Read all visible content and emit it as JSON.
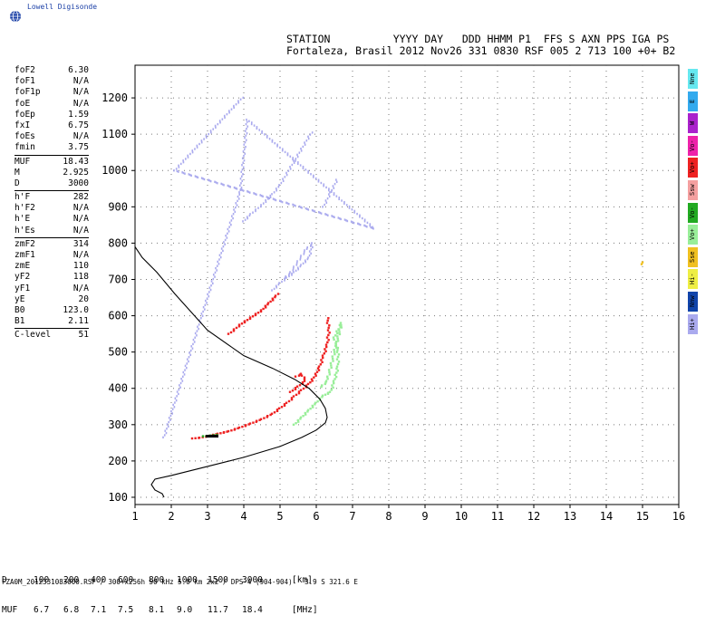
{
  "brand": {
    "name": "Lowell Digisonde"
  },
  "header": {
    "line1": "STATION          YYYY DAY   DDD HHMM P1  FFS S AXN PPS IGA PS",
    "line2": "Fortaleza, Brasil 2012 Nov26 331 0830 RSF 005 2 713 100 +0+ B2"
  },
  "params": [
    {
      "k": "foF2",
      "v": "6.30"
    },
    {
      "k": "foF1",
      "v": "N/A"
    },
    {
      "k": "foF1p",
      "v": "N/A"
    },
    {
      "k": "foE",
      "v": "N/A"
    },
    {
      "k": "foEp",
      "v": "1.59"
    },
    {
      "k": "fxI",
      "v": "6.75"
    },
    {
      "k": "foEs",
      "v": "N/A"
    },
    {
      "k": "fmin",
      "v": "3.75"
    },
    {
      "sep": true
    },
    {
      "k": "MUF",
      "v": "18.43"
    },
    {
      "k": "M",
      "v": "2.925"
    },
    {
      "k": "D",
      "v": "3000"
    },
    {
      "sep": true
    },
    {
      "k": "h'F",
      "v": "282"
    },
    {
      "k": "h'F2",
      "v": "N/A"
    },
    {
      "k": "h'E",
      "v": "N/A"
    },
    {
      "k": "h'Es",
      "v": "N/A"
    },
    {
      "sep": true
    },
    {
      "k": "zmF2",
      "v": "314"
    },
    {
      "k": "zmF1",
      "v": "N/A"
    },
    {
      "k": "zmE",
      "v": "110"
    },
    {
      "k": "yF2",
      "v": "118"
    },
    {
      "k": "yF1",
      "v": "N/A"
    },
    {
      "k": "yE",
      "v": "20"
    },
    {
      "k": "B0",
      "v": "123.0"
    },
    {
      "k": "B1",
      "v": "2.11"
    },
    {
      "sep": true
    },
    {
      "k": "C-level",
      "v": "51"
    }
  ],
  "legend": [
    {
      "label": "Nne",
      "color": "#66e8f0"
    },
    {
      "label": "E",
      "color": "#33aaee"
    },
    {
      "label": "W",
      "color": "#aa22cc"
    },
    {
      "label": "Vo-",
      "color": "#ee22aa"
    },
    {
      "label": "Vo+",
      "color": "#ee2222"
    },
    {
      "label": "Ssw",
      "color": "#f4a0a0"
    },
    {
      "label": "Vo-",
      "color": "#22aa22"
    },
    {
      "label": "Vo+",
      "color": "#99ee99"
    },
    {
      "label": "Sse",
      "color": "#f0c020"
    },
    {
      "label": "Hi-",
      "color": "#eeee44"
    },
    {
      "label": "Nnw",
      "color": "#1144aa"
    },
    {
      "label": "Hi+",
      "color": "#aaaaee"
    }
  ],
  "muf_table": {
    "d_label": "D",
    "d_values": [
      "100",
      "200",
      "400",
      "600",
      "800",
      "1000",
      "1500",
      "3000"
    ],
    "d_unit": "[km]",
    "m_label": "MUF",
    "m_values": [
      "6.7",
      "6.8",
      "7.1",
      "7.5",
      "8.1",
      "9.0",
      "11.7",
      "18.4"
    ],
    "m_unit": "[MHz]"
  },
  "footer": "FZA0M_2012331083000.RSF / 300+x256h 50 kHz 5.0 km 2x2 / DPS-4 (904-904)   3.9 S 321.6 E",
  "chart_data": {
    "type": "scatter",
    "xlim": [
      1,
      16
    ],
    "ylim": [
      80,
      1290
    ],
    "xticks": [
      1,
      2,
      3,
      4,
      5,
      6,
      7,
      8,
      9,
      10,
      11,
      12,
      13,
      14,
      15,
      16
    ],
    "yticks": [
      100,
      200,
      300,
      400,
      500,
      600,
      700,
      800,
      900,
      1000,
      1100,
      1200
    ],
    "grid": "dotted",
    "profile": {
      "x": [
        1.8,
        1.75,
        1.55,
        1.45,
        1.55,
        2.0,
        3.0,
        4.0,
        5.0,
        5.6,
        6.0,
        6.25,
        6.3,
        6.25,
        6.1,
        5.8,
        5.4,
        4.8,
        4.0,
        3.0,
        2.1,
        1.6,
        1.2,
        1.0
      ],
      "y": [
        100,
        110,
        120,
        135,
        150,
        160,
        185,
        210,
        240,
        265,
        285,
        305,
        320,
        345,
        370,
        400,
        425,
        455,
        490,
        560,
        660,
        720,
        760,
        790
      ]
    },
    "traces": [
      {
        "series": "Vo+",
        "color": "#ee2222",
        "x": [
          2.6,
          2.8,
          3.0,
          3.3,
          3.6,
          3.9,
          4.2,
          4.5,
          4.8,
          5.0,
          5.2,
          5.4,
          5.6,
          5.8,
          5.9,
          6.0,
          6.1,
          6.2,
          6.3
        ],
        "y": [
          262,
          264,
          268,
          275,
          282,
          292,
          303,
          315,
          330,
          345,
          360,
          378,
          395,
          412,
          425,
          440,
          460,
          490,
          520
        ]
      },
      {
        "series": "Vo+",
        "color": "#ee2222",
        "x": [
          6.3,
          6.35,
          6.3
        ],
        "y": [
          520,
          560,
          600
        ]
      },
      {
        "series": "Vo+",
        "color": "#ee2222",
        "x": [
          3.6,
          3.9,
          4.2,
          4.5,
          4.7,
          4.9,
          5.0
        ],
        "y": [
          550,
          575,
          595,
          615,
          635,
          655,
          665
        ]
      },
      {
        "series": "Vo+",
        "color": "#ee2222",
        "x": [
          5.3,
          5.5,
          5.7,
          5.6,
          5.4
        ],
        "y": [
          390,
          405,
          420,
          440,
          430
        ]
      },
      {
        "series": "Vo+",
        "color": "#99ee99",
        "x": [
          5.4,
          5.6,
          5.8,
          6.0,
          6.2,
          6.4,
          6.5,
          6.6,
          6.6,
          6.5,
          6.7,
          6.3,
          6.1
        ],
        "y": [
          300,
          320,
          340,
          360,
          380,
          390,
          420,
          460,
          500,
          540,
          580,
          420,
          400
        ]
      },
      {
        "series": "Vo-",
        "color": "#22aa22",
        "x": [
          2.9,
          3.1,
          3.3
        ],
        "y": [
          268,
          270,
          273
        ]
      },
      {
        "series": "Hi+",
        "color": "#aaaaee",
        "x": [
          4.8,
          5.0,
          5.2,
          5.4,
          5.6,
          5.8,
          5.9,
          5.7,
          5.5,
          5.3,
          5.1
        ],
        "y": [
          670,
          690,
          705,
          720,
          740,
          760,
          800,
          780,
          750,
          720,
          700
        ]
      },
      {
        "series": "Hi+",
        "color": "#aaaaee",
        "x": [
          4.0,
          4.2,
          4.5,
          4.8,
          5.0,
          5.3,
          5.6,
          5.9
        ],
        "y": [
          860,
          880,
          905,
          935,
          960,
          1010,
          1060,
          1110
        ]
      },
      {
        "series": "Hi+",
        "color": "#aaaaee",
        "x": [
          6.2,
          6.4,
          6.6
        ],
        "y": [
          900,
          940,
          980
        ]
      },
      {
        "series": "Hi+",
        "color": "#aaaaee",
        "x": [
          1.8,
          3.9,
          4.1,
          7.6,
          2.1,
          4.0
        ],
        "y": [
          265,
          940,
          1140,
          840,
          1000,
          1205
        ]
      },
      {
        "series": "Sse",
        "color": "#f0c020",
        "x": [
          15,
          15
        ],
        "y": [
          742,
          752
        ]
      }
    ]
  }
}
